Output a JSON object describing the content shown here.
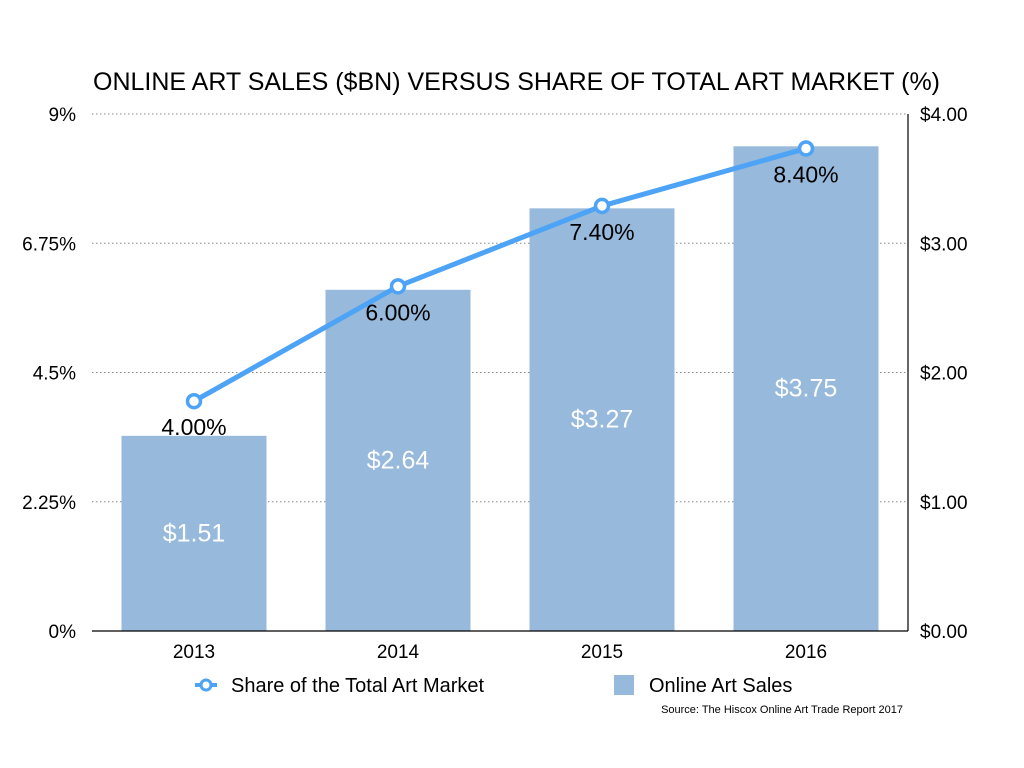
{
  "chart_data": {
    "type": "bar+line",
    "title": "ONLINE ART SALES ($BN) VERSUS SHARE OF TOTAL ART MARKET (%)",
    "categories": [
      "2013",
      "2014",
      "2015",
      "2016"
    ],
    "series": [
      {
        "name": "Online Art Sales",
        "type": "bar",
        "axis": "right",
        "values": [
          1.51,
          2.64,
          3.27,
          3.75
        ],
        "labels": [
          "$1.51",
          "$2.64",
          "$3.27",
          "$3.75"
        ],
        "color": "#97b9dc"
      },
      {
        "name": "Share of the Total Art Market",
        "type": "line",
        "axis": "left",
        "values": [
          4.0,
          6.0,
          7.4,
          8.4
        ],
        "labels": [
          "4.00%",
          "6.00%",
          "7.40%",
          "8.40%"
        ],
        "color": "#4da3f5"
      }
    ],
    "left_axis": {
      "ylim": [
        0,
        9
      ],
      "ticks": [
        0,
        2.25,
        4.5,
        6.75,
        9
      ],
      "tick_labels": [
        "0%",
        "2.25%",
        "4.5%",
        "6.75%",
        "9%"
      ]
    },
    "right_axis": {
      "ylim": [
        0,
        4
      ],
      "ticks": [
        0,
        1,
        2,
        3,
        4
      ],
      "tick_labels": [
        "$0.00",
        "$1.00",
        "$2.00",
        "$3.00",
        "$4.00"
      ]
    },
    "grid": true,
    "legend": {
      "placement": "bottom",
      "entries": [
        "Share of the Total Art Market",
        "Online Art Sales"
      ]
    },
    "source": "Source: The Hiscox Online Art Trade Report 2017"
  }
}
